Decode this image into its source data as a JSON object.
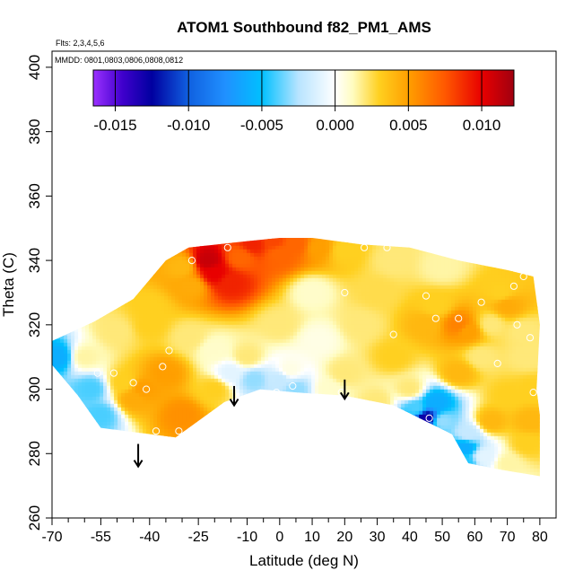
{
  "chart_data": {
    "type": "heatmap",
    "title": "ATOM1 Southbound f82_PM1_AMS",
    "subtitle_flights": "Flts: 2,3,4,5,6",
    "subtitle_dates": "MMDD: 0801,0803,0806,0808,0812",
    "xlabel": "Latitude (deg N)",
    "ylabel": "Theta (C)",
    "xlim": [
      -70,
      85
    ],
    "ylim": [
      260,
      405
    ],
    "x_ticks": [
      -70,
      -55,
      -40,
      -25,
      -10,
      0,
      10,
      20,
      30,
      40,
      50,
      60,
      70,
      80
    ],
    "x_minor_ticks": [
      -65,
      -60,
      -50,
      -45,
      -35,
      -30,
      -20,
      -15,
      -5,
      5,
      15,
      25,
      35,
      45,
      55,
      65,
      75
    ],
    "y_ticks": [
      260,
      280,
      300,
      320,
      340,
      360,
      380,
      400
    ],
    "colorbar": {
      "range": [
        -0.0165,
        0.0122
      ],
      "ticks": [
        -0.015,
        -0.01,
        -0.005,
        0.0,
        0.005,
        0.01
      ],
      "tick_labels": [
        "-0.015",
        "-0.010",
        "-0.005",
        "0.000",
        "0.005",
        "0.010"
      ],
      "stops": [
        [
          -0.0165,
          "#9b30ff"
        ],
        [
          -0.0145,
          "#3f00cc"
        ],
        [
          -0.0125,
          "#0000a0"
        ],
        [
          -0.01,
          "#1060e0"
        ],
        [
          -0.0075,
          "#2090ff"
        ],
        [
          -0.005,
          "#00c0ff"
        ],
        [
          -0.0025,
          "#b8e4ff"
        ],
        [
          0.0,
          "#ffffff"
        ],
        [
          0.0012,
          "#fffcc0"
        ],
        [
          0.003,
          "#ffd020"
        ],
        [
          0.005,
          "#ff9f00"
        ],
        [
          0.0075,
          "#ff5800"
        ],
        [
          0.01,
          "#e80000"
        ],
        [
          0.0122,
          "#a00010"
        ]
      ]
    },
    "surface_boundary": [
      [
        -72,
        314
      ],
      [
        -57,
        321
      ],
      [
        -45,
        328
      ],
      [
        -35,
        340
      ],
      [
        -28,
        344
      ],
      [
        -10,
        346
      ],
      [
        0,
        347
      ],
      [
        10,
        347
      ],
      [
        25,
        345
      ],
      [
        40,
        344
      ],
      [
        55,
        340
      ],
      [
        70,
        337
      ],
      [
        78,
        335
      ],
      [
        80,
        320
      ],
      [
        79,
        300
      ],
      [
        80,
        292
      ],
      [
        80,
        273
      ],
      [
        68,
        275
      ],
      [
        58,
        277
      ],
      [
        53,
        286
      ],
      [
        35,
        295
      ],
      [
        20,
        298
      ],
      [
        5,
        299
      ],
      [
        -6,
        300
      ],
      [
        -17,
        296
      ],
      [
        -32,
        285
      ],
      [
        -55,
        288
      ],
      [
        -62,
        298
      ],
      [
        -72,
        310
      ]
    ],
    "anchor_points": [
      [
        -60,
        310,
        0.0015
      ],
      [
        -68,
        310,
        -0.006
      ],
      [
        -58,
        300,
        -0.004
      ],
      [
        -55,
        292,
        -0.004
      ],
      [
        -50,
        318,
        0.002
      ],
      [
        -48,
        302,
        0.003
      ],
      [
        -45,
        297,
        0.0045
      ],
      [
        -42,
        300,
        0.005
      ],
      [
        -40,
        325,
        0.003
      ],
      [
        -35,
        305,
        0.005
      ],
      [
        -30,
        292,
        0.0055
      ],
      [
        -27,
        332,
        0.0045
      ],
      [
        -22,
        340,
        0.011
      ],
      [
        -20,
        336,
        0.01
      ],
      [
        -15,
        333,
        0.009
      ],
      [
        -12,
        341,
        0.007
      ],
      [
        -8,
        345,
        0.009
      ],
      [
        -2,
        346,
        0.008
      ],
      [
        0,
        342,
        0.007
      ],
      [
        5,
        345,
        0.007
      ],
      [
        12,
        344,
        0.005
      ],
      [
        20,
        343,
        0.003
      ],
      [
        -28,
        316,
        0.002
      ],
      [
        -20,
        312,
        0.001
      ],
      [
        -15,
        305,
        -0.001
      ],
      [
        -8,
        303,
        -0.003
      ],
      [
        0,
        303,
        -0.002
      ],
      [
        3,
        306,
        0.0005
      ],
      [
        5,
        300,
        -0.003
      ],
      [
        -20,
        300,
        0.003
      ],
      [
        -10,
        310,
        0.002
      ],
      [
        12,
        315,
        0.0005
      ],
      [
        15,
        300,
        0.001
      ],
      [
        20,
        305,
        0.002
      ],
      [
        25,
        320,
        0.002
      ],
      [
        30,
        330,
        0.0025
      ],
      [
        35,
        310,
        0.003
      ],
      [
        40,
        300,
        0.002
      ],
      [
        42,
        294,
        -0.004
      ],
      [
        45,
        291,
        -0.013
      ],
      [
        48,
        296,
        -0.006
      ],
      [
        50,
        290,
        -0.003
      ],
      [
        45,
        320,
        0.004
      ],
      [
        48,
        326,
        0.003
      ],
      [
        55,
        320,
        0.006
      ],
      [
        58,
        318,
        0.005
      ],
      [
        62,
        310,
        0.002
      ],
      [
        65,
        320,
        0.002
      ],
      [
        68,
        330,
        0.003
      ],
      [
        70,
        326,
        0.0045
      ],
      [
        75,
        318,
        0.002
      ],
      [
        76,
        310,
        0.002
      ],
      [
        78,
        300,
        0.003
      ],
      [
        77,
        290,
        0.004
      ],
      [
        70,
        298,
        0.003
      ],
      [
        65,
        290,
        0.004
      ],
      [
        58,
        286,
        -0.002
      ],
      [
        57,
        282,
        -0.006
      ],
      [
        57,
        277,
        -0.0045
      ],
      [
        63,
        279,
        -0.001
      ],
      [
        70,
        277,
        0.0015
      ],
      [
        76,
        283,
        0.003
      ],
      [
        55,
        305,
        0.004
      ],
      [
        30,
        296,
        0.002
      ],
      [
        35,
        340,
        0.002
      ],
      [
        50,
        338,
        0.0015
      ],
      [
        -30,
        338,
        0.004
      ],
      [
        -40,
        320,
        0.003
      ],
      [
        10,
        330,
        0.001
      ],
      [
        0,
        320,
        0.002
      ]
    ],
    "sample_points": [
      [
        -27,
        340
      ],
      [
        -16,
        344
      ],
      [
        20,
        330
      ],
      [
        26,
        344
      ],
      [
        33,
        344
      ],
      [
        45,
        329
      ],
      [
        62,
        327
      ],
      [
        72,
        332
      ],
      [
        75,
        335
      ],
      [
        48,
        322
      ],
      [
        55,
        322
      ],
      [
        73,
        320
      ],
      [
        35,
        317
      ],
      [
        -34,
        312
      ],
      [
        -45,
        302
      ],
      [
        -51,
        305
      ],
      [
        -56,
        305
      ],
      [
        -41,
        300
      ],
      [
        -36,
        307
      ],
      [
        4,
        301
      ],
      [
        -1,
        299
      ],
      [
        19,
        299
      ],
      [
        -31,
        287
      ],
      [
        46,
        291
      ],
      [
        67,
        308
      ],
      [
        78,
        299
      ],
      [
        77,
        316
      ],
      [
        -38,
        287
      ]
    ],
    "arrows": [
      {
        "lat": -43.5,
        "theta_top": 283,
        "theta_bottom": 276
      },
      {
        "lat": -14,
        "theta_top": 301,
        "theta_bottom": 295
      },
      {
        "lat": 20,
        "theta_top": 303,
        "theta_bottom": 297
      }
    ]
  }
}
